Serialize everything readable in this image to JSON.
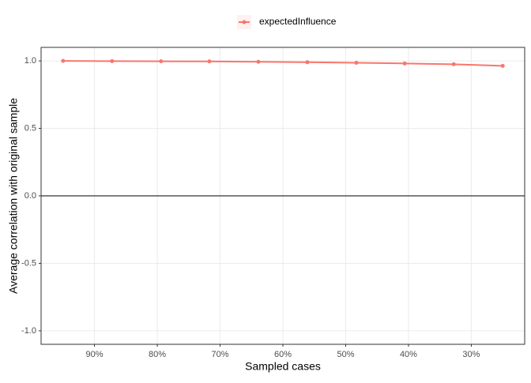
{
  "chart_data": {
    "type": "line",
    "xlabel": "Sampled cases",
    "ylabel": "Average correlation with original sample",
    "x": [
      95,
      87.2,
      79.4,
      71.7,
      63.9,
      56.1,
      48.3,
      40.6,
      32.8,
      25
    ],
    "series": [
      {
        "name": "expectedInfluence",
        "color": "#f8766d",
        "values": [
          1.0,
          0.998,
          0.997,
          0.996,
          0.993,
          0.99,
          0.986,
          0.981,
          0.975,
          0.963
        ]
      }
    ],
    "xlim": [
      98.5,
      21.5
    ],
    "xticks": [
      {
        "value": 90,
        "label": "90%"
      },
      {
        "value": 80,
        "label": "80%"
      },
      {
        "value": 70,
        "label": "70%"
      },
      {
        "value": 60,
        "label": "60%"
      },
      {
        "value": 50,
        "label": "50%"
      },
      {
        "value": 40,
        "label": "40%"
      },
      {
        "value": 30,
        "label": "30%"
      }
    ],
    "ylim": [
      -1.1,
      1.1
    ],
    "yticks": [
      {
        "value": 1,
        "label": "1.0"
      },
      0.5,
      {
        "value": 0,
        "label": "0.0"
      },
      -0.5,
      {
        "value": -1,
        "label": "-1.0"
      }
    ],
    "hline": 0,
    "grid": true,
    "legend": "top"
  }
}
